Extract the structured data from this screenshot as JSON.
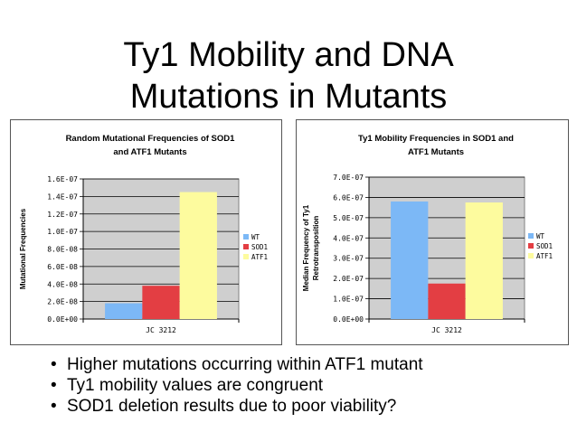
{
  "slide": {
    "title_line1": "Ty1 Mobility and DNA",
    "title_line2": "Mutations in Mutants",
    "bullets": [
      "Higher mutations occurring within ATF1 mutant",
      "Ty1 mobility values are congruent",
      "SOD1 deletion results due to poor viability?"
    ]
  },
  "colors": {
    "WT": "#7cb8f6",
    "SOD1": "#e33e43",
    "ATF1": "#fdfb9e",
    "plot_bg": "#cfcfcf"
  },
  "chart_data": [
    {
      "type": "bar",
      "title": [
        "Random Mutational Frequencies of SOD1",
        "and ATF1 Mutants"
      ],
      "xlabel": "",
      "ylabel": [
        "Mutational Frequencies"
      ],
      "categories": [
        "JC 3212"
      ],
      "series": [
        {
          "name": "WT",
          "values": [
            1.8e-08
          ]
        },
        {
          "name": "SOD1",
          "values": [
            3.8e-08
          ]
        },
        {
          "name": "ATF1",
          "values": [
            1.45e-07
          ]
        }
      ],
      "ylim": [
        0,
        1.6e-07
      ],
      "yticks": [
        0,
        2e-08,
        4e-08,
        6e-08,
        8e-08,
        1e-07,
        1.2e-07,
        1.4e-07,
        1.6e-07
      ],
      "ytick_labels": [
        "0.0E+00",
        "2.0E-08",
        "4.0E-08",
        "6.0E-08",
        "8.0E-08",
        "1.0E-07",
        "1.2E-07",
        "1.4E-07",
        "1.6E-07"
      ],
      "legend": "right",
      "grid": true
    },
    {
      "type": "bar",
      "title": [
        "Ty1 Mobility Frequencies in SOD1 and",
        "ATF1 Mutants"
      ],
      "xlabel": "",
      "ylabel": [
        "Median Frequency of Ty1",
        "Retrotransposition"
      ],
      "categories": [
        "JC 3212"
      ],
      "series": [
        {
          "name": "WT",
          "values": [
            5.8e-07
          ]
        },
        {
          "name": "SOD1",
          "values": [
            1.75e-07
          ]
        },
        {
          "name": "ATF1",
          "values": [
            5.75e-07
          ]
        }
      ],
      "ylim": [
        0,
        7e-07
      ],
      "yticks": [
        0,
        1e-07,
        2e-07,
        3e-07,
        4e-07,
        5e-07,
        6e-07,
        7e-07
      ],
      "ytick_labels": [
        "0.0E+00",
        "1.0E-07",
        "2.0E-07",
        "3.0E-07",
        "4.0E-07",
        "5.0E-07",
        "6.0E-07",
        "7.0E-07"
      ],
      "legend": "right",
      "grid": true
    }
  ]
}
